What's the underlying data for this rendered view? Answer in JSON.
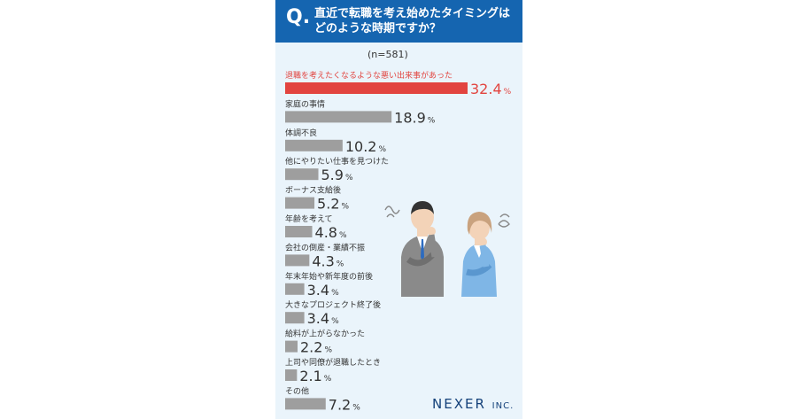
{
  "header": {
    "q_mark": "Q.",
    "question": "直近で転職を考え始めたタイミングは\nどのような時期ですか？"
  },
  "sample_label": "(n=581)",
  "brand": {
    "name": "NEXER",
    "suffix": "INC."
  },
  "colors": {
    "accent": "#e2443f",
    "bar": "#9e9e9e",
    "header": "#1565b0",
    "panel": "#eaf4fb"
  },
  "chart_data": {
    "type": "bar",
    "orientation": "horizontal",
    "unit": "%",
    "categories": [
      "退職を考えたくなるような悪い出来事があった",
      "家庭の事情",
      "体調不良",
      "他にやりたい仕事を見つけた",
      "ボーナス支給後",
      "年齢を考えて",
      "会社の倒産・業績不振",
      "年末年始や新年度の前後",
      "大きなプロジェクト終了後",
      "給料が上がらなかった",
      "上司や同僚が退職したとき",
      "その他"
    ],
    "values": [
      32.4,
      18.9,
      10.2,
      5.9,
      5.2,
      4.8,
      4.3,
      3.4,
      3.4,
      2.2,
      2.1,
      7.2
    ],
    "value_labels": [
      "32.4",
      "18.9",
      "10.2",
      "5.9",
      "5.2",
      "4.8",
      "4.3",
      "3.4",
      "3.4",
      "2.2",
      "2.1",
      "7.2"
    ],
    "xlim": [
      0,
      32.4
    ]
  }
}
